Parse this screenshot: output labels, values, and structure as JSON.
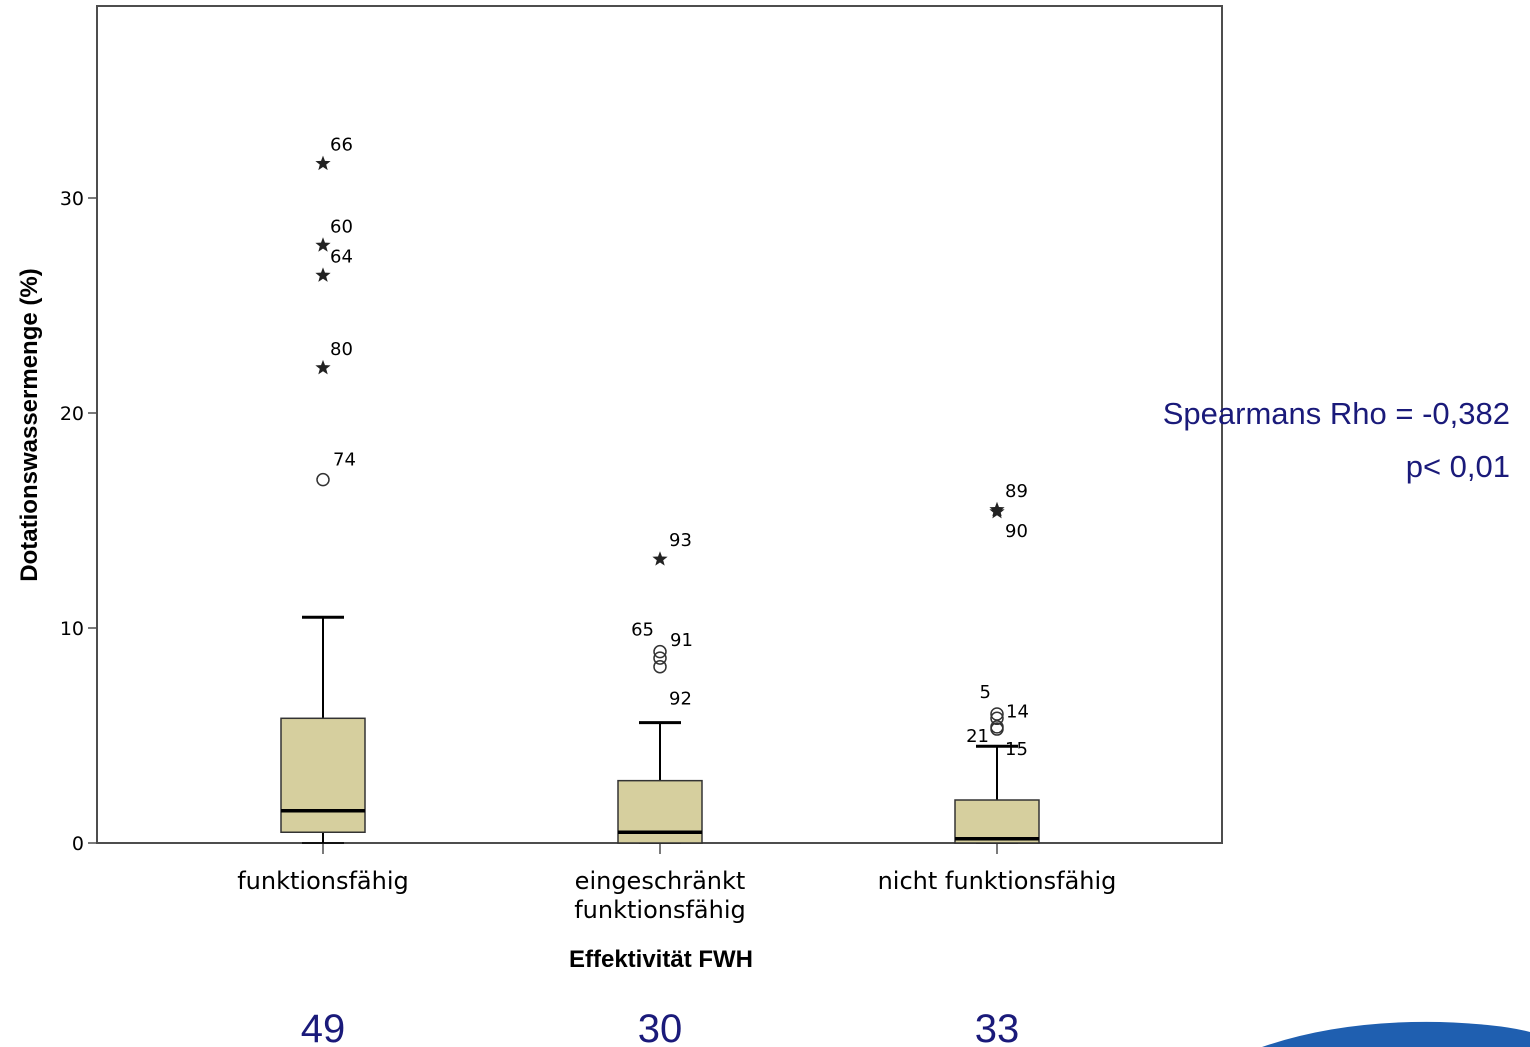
{
  "chart_data": {
    "type": "boxplot",
    "xlabel": "Effektivität FWH",
    "ylabel": "Dotationswassermenge (%)",
    "ylim": [
      0,
      39
    ],
    "yticks": [
      0,
      10,
      20,
      30
    ],
    "categories": [
      {
        "label_lines": [
          "funktionsfähig"
        ],
        "n": "49"
      },
      {
        "label_lines": [
          "eingeschränkt",
          "funktionsfähig"
        ],
        "n": "30"
      },
      {
        "label_lines": [
          "nicht funktionsfähig"
        ],
        "n": "33"
      }
    ],
    "boxes": [
      {
        "min": 0,
        "q1": 0.5,
        "median": 1.5,
        "q3": 5.8,
        "max": 10.5,
        "outliers": [
          {
            "id": "74",
            "value": 16.9,
            "marker": "circle"
          }
        ],
        "extremes": [
          {
            "id": "66",
            "value": 31.6
          },
          {
            "id": "60",
            "value": 27.8
          },
          {
            "id": "64",
            "value": 26.4
          },
          {
            "id": "80",
            "value": 22.1
          }
        ]
      },
      {
        "min": 0,
        "q1": 0,
        "median": 0.5,
        "q3": 2.9,
        "max": 5.6,
        "outliers": [
          {
            "id": "65",
            "value": 8.9,
            "marker": "circle"
          },
          {
            "id": "91",
            "value": 8.6,
            "marker": "circle"
          },
          {
            "id": "92",
            "value": 8.2,
            "marker": "circle"
          }
        ],
        "extremes": [
          {
            "id": "93",
            "value": 13.2
          }
        ]
      },
      {
        "min": 0,
        "q1": 0,
        "median": 0.2,
        "q3": 2.0,
        "max": 4.5,
        "outliers": [
          {
            "id": "5",
            "value": 6.0,
            "marker": "circle"
          },
          {
            "id": "14",
            "value": 5.8,
            "marker": "circle"
          },
          {
            "id": "21",
            "value": 5.4,
            "marker": "circle"
          },
          {
            "id": "15",
            "value": 5.3,
            "marker": "circle"
          }
        ],
        "extremes": [
          {
            "id": "89",
            "value": 15.5
          },
          {
            "id": "90",
            "value": 15.4
          }
        ]
      }
    ],
    "annotation": {
      "lines": [
        "Spearmans Rho = -0,382",
        "p< 0,01"
      ]
    },
    "colors": {
      "box_fill": "#d6cf9e",
      "annotation": "#1a1a7a",
      "accent_blue": "#1f5fb0"
    }
  }
}
